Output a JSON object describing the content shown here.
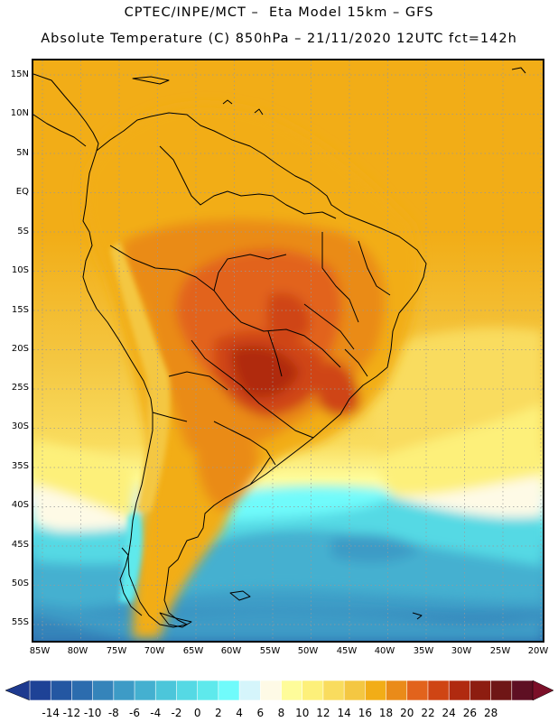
{
  "header": {
    "line1": "CPTEC/INPE/MCT –  Eta Model 15km – GFS",
    "line2": "Absolute Temperature (C) 850hPa – 21/11/2020 12UTC fct=142h"
  },
  "map": {
    "latitude_labels": [
      "15N",
      "10N",
      "5N",
      "EQ",
      "5S",
      "10S",
      "15S",
      "20S",
      "25S",
      "30S",
      "35S",
      "40S",
      "45S",
      "50S",
      "55S"
    ],
    "longitude_labels": [
      "85W",
      "80W",
      "75W",
      "70W",
      "65W",
      "60W",
      "55W",
      "50W",
      "45W",
      "40W",
      "35W",
      "30W",
      "25W",
      "20W"
    ],
    "regions": {
      "land": "South America",
      "hot_core": "Central-west Brazil / Paraguay",
      "cold_pool": "South Atlantic off Patagonia"
    }
  },
  "colorbar": {
    "labels": [
      "-14",
      "-12",
      "-10",
      "-8",
      "-6",
      "-4",
      "-2",
      "0",
      "2",
      "4",
      "6",
      "8",
      "10",
      "12",
      "14",
      "16",
      "18",
      "20",
      "22",
      "24",
      "26",
      "28"
    ],
    "colors": [
      "#1e4296",
      "#2457a2",
      "#2c6cae",
      "#3584ba",
      "#3d9bc6",
      "#44b0d0",
      "#4cc6da",
      "#55d9e4",
      "#5ee9ec",
      "#70fbfb",
      "#d5f5fb",
      "#fefae6",
      "#fefc9a",
      "#fdf07a",
      "#f9dc5e",
      "#f4c742",
      "#f2ad17",
      "#ea8b19",
      "#e2631c",
      "#cf4514",
      "#b02a10",
      "#8d1d10",
      "#6f1616",
      "#5e0f23"
    ],
    "low_arrow_color": "#1e3a8f",
    "high_arrow_color": "#7b0f28"
  }
}
